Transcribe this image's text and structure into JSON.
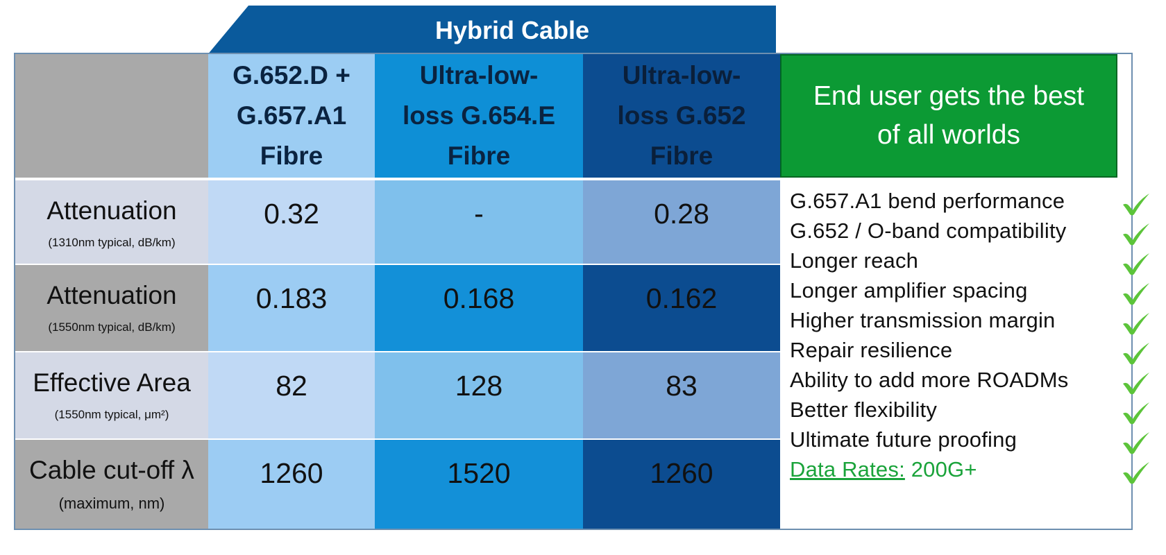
{
  "header": {
    "label": "Hybrid Cable"
  },
  "columns": [
    {
      "title_lines": [
        "G.652.D +",
        "G.657.A1",
        "Fibre"
      ]
    },
    {
      "title_lines": [
        "Ultra-low-",
        "loss G.654.E",
        "Fibre"
      ]
    },
    {
      "title_lines": [
        "Ultra-low-",
        "loss G.652",
        "Fibre"
      ]
    }
  ],
  "rows": [
    {
      "label": "Attenuation",
      "sub": "(1310nm typical, dB/km)",
      "values": [
        "0.32",
        "-",
        "0.28"
      ]
    },
    {
      "label": "Attenuation",
      "sub": "(1550nm typical, dB/km)",
      "values": [
        "0.183",
        "0.168",
        "0.162"
      ]
    },
    {
      "label": "Effective Area",
      "sub": "(1550nm typical, μm²)",
      "values": [
        "82",
        "128",
        "83"
      ]
    },
    {
      "label": "Cable cut-off λ",
      "sub": "(maximum, nm)",
      "values": [
        "1260",
        "1520",
        "1260"
      ]
    }
  ],
  "summary": {
    "title_lines": [
      "End user gets the best",
      "of all worlds"
    ],
    "benefits": [
      "G.657.A1 bend performance",
      "G.652 / O-band compatibility",
      "Longer reach",
      "Longer amplifier spacing",
      "Higher transmission margin",
      "Repair resilience",
      "Ability to add more ROADMs",
      "Better flexibility",
      "Ultimate future proofing"
    ],
    "data_rates_label": "Data Rates:",
    "data_rates_value": "200G+"
  },
  "colors": {
    "header_blue": "#0a5a9c",
    "col1_head": "#9cccf2",
    "col2_head": "#0e8fd6",
    "col3_head": "#0c4c90",
    "green": "#0c9a34",
    "check": "#5cc43a"
  }
}
